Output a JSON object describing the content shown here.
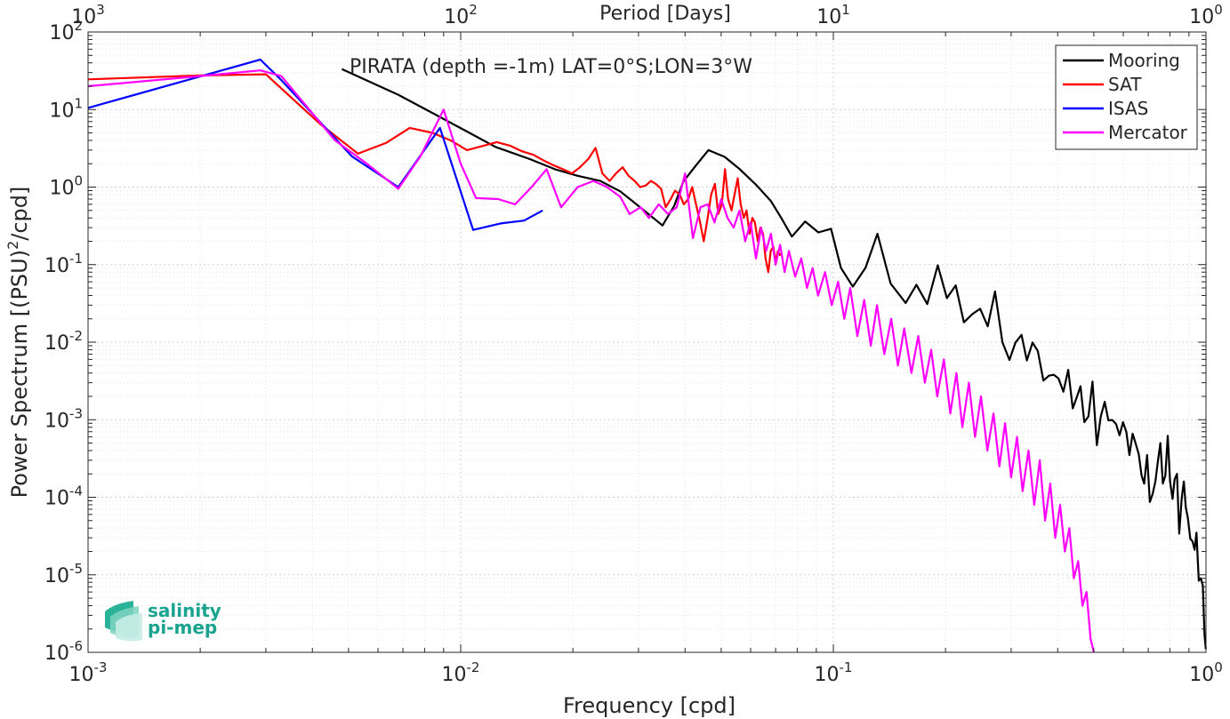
{
  "chart_data": {
    "type": "line",
    "scale": "log-log",
    "xlabel": "Frequency [cpd]",
    "ylabel": "Power Spectrum [(PSU)",
    "ylabel_sup": "2",
    "ylabel_tail": "/cpd]",
    "top_xlabel": "Period [Days]",
    "annotation": "PIRATA (depth =-1m) LAT=0°S;LON=3°W",
    "xlim": [
      0.001,
      1
    ],
    "ylim": [
      1e-06,
      100
    ],
    "grid": true,
    "legend_position": "top-right",
    "x_tick_labels": [
      {
        "value": 0.001,
        "base": "10",
        "exp": "-3"
      },
      {
        "value": 0.01,
        "base": "10",
        "exp": "-2"
      },
      {
        "value": 0.1,
        "base": "10",
        "exp": "-1"
      },
      {
        "value": 1,
        "base": "10",
        "exp": "0"
      }
    ],
    "top_tick_labels": [
      {
        "value": 0.001,
        "base": "10",
        "exp": "3"
      },
      {
        "value": 0.01,
        "base": "10",
        "exp": "2"
      },
      {
        "value": 0.1,
        "base": "10",
        "exp": "1"
      },
      {
        "value": 1,
        "base": "10",
        "exp": "0"
      }
    ],
    "y_tick_labels": [
      {
        "value": 100,
        "base": "10",
        "exp": "2"
      },
      {
        "value": 10,
        "base": "10",
        "exp": "1"
      },
      {
        "value": 1,
        "base": "10",
        "exp": "0"
      },
      {
        "value": 0.1,
        "base": "10",
        "exp": "-1"
      },
      {
        "value": 0.01,
        "base": "10",
        "exp": "-2"
      },
      {
        "value": 0.001,
        "base": "10",
        "exp": "-3"
      },
      {
        "value": 0.0001,
        "base": "10",
        "exp": "-4"
      },
      {
        "value": 1e-05,
        "base": "10",
        "exp": "-5"
      },
      {
        "value": 1e-06,
        "base": "10",
        "exp": "-6"
      }
    ],
    "series": [
      {
        "name": "Mooring",
        "color": "#000000",
        "x": [
          0.0048,
          0.0068,
          0.0083,
          0.0104,
          0.0124,
          0.0153,
          0.0179,
          0.0206,
          0.0237,
          0.0268,
          0.0306,
          0.0348,
          0.0374,
          0.0396,
          0.0424,
          0.0462,
          0.0511,
          0.0561,
          0.0623,
          0.068,
          0.0727,
          0.0774,
          0.084,
          0.0912,
          0.0986,
          0.1048,
          0.1128,
          0.122,
          0.1313,
          0.1425,
          0.1563,
          0.1671,
          0.1787,
          0.1906,
          0.2017,
          0.213,
          0.224,
          0.236,
          0.2478,
          0.2596,
          0.2716,
          0.2843,
          0.2968,
          0.3082,
          0.3199,
          0.3306,
          0.3424,
          0.3537,
          0.3663,
          0.379,
          0.3905,
          0.402,
          0.4145,
          0.4268,
          0.4389,
          0.4493,
          0.4604,
          0.4714,
          0.4835,
          0.496,
          0.5096,
          0.522,
          0.5349,
          0.5473,
          0.5606,
          0.5738,
          0.5863,
          0.5988,
          0.6111,
          0.623,
          0.6356,
          0.6478,
          0.6599,
          0.6719,
          0.6827,
          0.6949,
          0.7068,
          0.7193,
          0.7314,
          0.7428,
          0.7543,
          0.7661,
          0.778,
          0.7895,
          0.8011,
          0.8131,
          0.8235,
          0.8362,
          0.8474,
          0.8605,
          0.8719,
          0.8826,
          0.8941,
          0.9076,
          0.9205,
          0.932,
          0.9431,
          0.9563,
          0.9688,
          0.9807,
          0.9906,
          0.999
        ],
        "y": [
          33.3,
          15.5,
          9.3,
          5.2,
          3.3,
          2.3,
          1.7,
          1.4,
          1.2,
          0.88,
          0.53,
          0.32,
          0.57,
          1.18,
          1.8,
          3.0,
          2.45,
          1.7,
          1.05,
          0.66,
          0.39,
          0.23,
          0.36,
          0.26,
          0.29,
          0.091,
          0.052,
          0.091,
          0.25,
          0.057,
          0.032,
          0.055,
          0.031,
          0.098,
          0.037,
          0.054,
          0.018,
          0.023,
          0.027,
          0.016,
          0.045,
          0.01,
          0.0059,
          0.0099,
          0.0124,
          0.0058,
          0.0099,
          0.0077,
          0.0032,
          0.0037,
          0.0038,
          0.0034,
          0.0023,
          0.0044,
          0.0014,
          0.0019,
          0.0027,
          0.00093,
          0.0011,
          0.0031,
          0.00047,
          0.0011,
          0.0017,
          0.00098,
          0.00099,
          0.00088,
          0.00063,
          0.00093,
          0.0007,
          0.00035,
          0.00066,
          0.00049,
          0.00036,
          0.00019,
          0.00015,
          0.00035,
          8.7e-05,
          0.00011,
          0.00016,
          0.00029,
          0.0005,
          0.00015,
          0.00019,
          0.00062,
          0.00016,
          9.5e-05,
          0.00017,
          0.0002,
          3.4e-05,
          9.7e-05,
          0.00016,
          7.4e-05,
          5.4e-05,
          2.9e-05,
          2.7e-05,
          2.1e-05,
          3.5e-05,
          8.4e-06,
          9e-06,
          7.2e-06,
          1.7e-06,
          1.1e-06
        ],
        "line_width": 2.2
      },
      {
        "name": "SAT",
        "color": "#ff0000",
        "x": [
          0.001,
          0.002,
          0.003,
          0.0042,
          0.0053,
          0.0063,
          0.0073,
          0.0084,
          0.0094,
          0.0104,
          0.0115,
          0.0125,
          0.0136,
          0.0146,
          0.0157,
          0.0167,
          0.0178,
          0.0188,
          0.0199,
          0.0209,
          0.022,
          0.023,
          0.024,
          0.0251,
          0.0261,
          0.0272,
          0.0282,
          0.0293,
          0.0303,
          0.0314,
          0.0324,
          0.0334,
          0.0345,
          0.0355,
          0.0366,
          0.0376,
          0.0387,
          0.0397,
          0.0408,
          0.0418,
          0.0428,
          0.0439,
          0.0449,
          0.046,
          0.047,
          0.0481,
          0.0491,
          0.0502,
          0.0512,
          0.0522,
          0.0533,
          0.0543,
          0.0554,
          0.0564,
          0.0575,
          0.0585,
          0.0596,
          0.0606,
          0.0616,
          0.0627,
          0.0637,
          0.0648,
          0.0658,
          0.0669,
          0.0679,
          0.069,
          0.07,
          0.071,
          0.0721
        ],
        "y": [
          24.5,
          27.5,
          28.5,
          6.5,
          2.7,
          3.7,
          5.8,
          5.0,
          4.0,
          3.0,
          3.4,
          3.8,
          3.4,
          2.9,
          2.6,
          2.2,
          1.9,
          1.7,
          1.5,
          1.8,
          2.3,
          3.2,
          1.5,
          1.2,
          1.5,
          1.8,
          1.4,
          1.2,
          1.0,
          1.05,
          1.2,
          1.1,
          0.95,
          0.55,
          0.7,
          0.9,
          0.8,
          0.6,
          0.7,
          1.0,
          0.6,
          0.35,
          0.2,
          0.4,
          0.8,
          1.1,
          0.45,
          0.6,
          1.7,
          0.7,
          0.5,
          0.8,
          1.3,
          0.6,
          0.4,
          0.5,
          0.25,
          0.4,
          0.35,
          0.2,
          0.3,
          0.25,
          0.12,
          0.08,
          0.15,
          0.17,
          0.11,
          0.15,
          0.13
        ],
        "line_width": 2.2
      },
      {
        "name": "ISAS",
        "color": "#0000ff",
        "x": [
          0.001,
          0.0029,
          0.0033,
          0.0051,
          0.0068,
          0.0088,
          0.0108,
          0.0128,
          0.0148,
          0.0166
        ],
        "y": [
          10.5,
          44.0,
          24.0,
          2.5,
          1.0,
          5.8,
          0.28,
          0.34,
          0.37,
          0.5
        ],
        "line_width": 2.2
      },
      {
        "name": "Mercator",
        "color": "#ff00ff",
        "x": [
          0.001,
          0.002,
          0.0029,
          0.0033,
          0.0046,
          0.0056,
          0.0068,
          0.0078,
          0.009,
          0.01,
          0.011,
          0.0126,
          0.014,
          0.0155,
          0.017,
          0.0186,
          0.0206,
          0.0227,
          0.0247,
          0.0268,
          0.0284,
          0.0304,
          0.032,
          0.034,
          0.036,
          0.038,
          0.04,
          0.042,
          0.044,
          0.046,
          0.048,
          0.05,
          0.052,
          0.054,
          0.056,
          0.058,
          0.06,
          0.062,
          0.064,
          0.066,
          0.068,
          0.07,
          0.072,
          0.074,
          0.076,
          0.079,
          0.082,
          0.085,
          0.088,
          0.091,
          0.095,
          0.099,
          0.103,
          0.107,
          0.111,
          0.116,
          0.121,
          0.126,
          0.131,
          0.137,
          0.143,
          0.149,
          0.155,
          0.162,
          0.169,
          0.176,
          0.183,
          0.19,
          0.198,
          0.206,
          0.214,
          0.222,
          0.231,
          0.24,
          0.249,
          0.259,
          0.269,
          0.279,
          0.289,
          0.3,
          0.311,
          0.322,
          0.334,
          0.346,
          0.358,
          0.37,
          0.382,
          0.394,
          0.406,
          0.418,
          0.43,
          0.442,
          0.454,
          0.466,
          0.478,
          0.49,
          0.5
        ],
        "y": [
          20.0,
          27.0,
          32.0,
          27.0,
          4.0,
          2.0,
          0.95,
          2.5,
          10.0,
          2.0,
          0.72,
          0.7,
          0.6,
          1.0,
          1.7,
          0.55,
          1.0,
          1.2,
          1.0,
          0.75,
          0.45,
          0.55,
          0.4,
          0.6,
          0.45,
          0.55,
          1.5,
          0.22,
          0.55,
          0.6,
          0.35,
          0.7,
          0.4,
          0.3,
          0.5,
          0.2,
          0.35,
          0.12,
          0.3,
          0.15,
          0.25,
          0.1,
          0.18,
          0.08,
          0.15,
          0.07,
          0.12,
          0.05,
          0.09,
          0.04,
          0.08,
          0.03,
          0.06,
          0.02,
          0.05,
          0.012,
          0.035,
          0.009,
          0.03,
          0.007,
          0.02,
          0.005,
          0.015,
          0.004,
          0.012,
          0.003,
          0.008,
          0.002,
          0.006,
          0.0012,
          0.004,
          0.0008,
          0.003,
          0.0006,
          0.002,
          0.0004,
          0.0012,
          0.00025,
          0.0009,
          0.00018,
          0.0006,
          0.00012,
          0.0004,
          8e-05,
          0.0003,
          5e-05,
          0.00015,
          3e-05,
          8e-05,
          2e-05,
          4e-05,
          9e-06,
          1.5e-05,
          4e-06,
          6e-06,
          1.5e-06,
          1e-06
        ],
        "line_width": 2.2
      }
    ]
  },
  "logo": {
    "line1": "salinity",
    "line2": "pi-mep",
    "color": "#1aa38f"
  }
}
